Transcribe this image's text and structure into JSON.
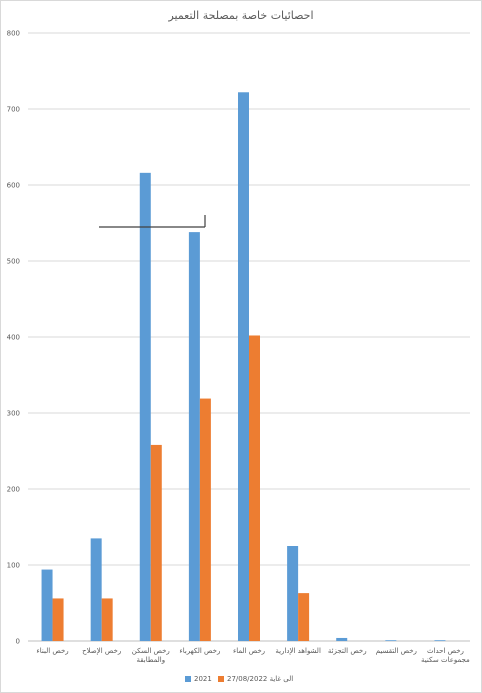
{
  "chart_data": {
    "type": "bar",
    "title": "احصائيات خاصة بمصلحة التعمير",
    "categories": [
      "رخص البناء",
      "رخص الإصلاح",
      "رخص السكن والمطابقة",
      "رخص الكهرباء",
      "رخص الماء",
      "الشواهد الإدارية",
      "رخص التجزئة",
      "رخص التقسيم",
      "رخص احداث مجموعات سكنية"
    ],
    "series": [
      {
        "name": "2021",
        "color": "#5b9bd5",
        "values": [
          94,
          135,
          616,
          538,
          722,
          125,
          4,
          1,
          1
        ]
      },
      {
        "name": "الى غاية 27/08/2022",
        "color": "#ed7d31",
        "values": [
          56,
          56,
          258,
          319,
          402,
          63,
          0,
          0,
          0
        ]
      }
    ],
    "ylim": [
      0,
      800
    ],
    "yticks": [
      0,
      100,
      200,
      300,
      400,
      500,
      600,
      700,
      800
    ],
    "grid": true,
    "legend": "bottom"
  }
}
